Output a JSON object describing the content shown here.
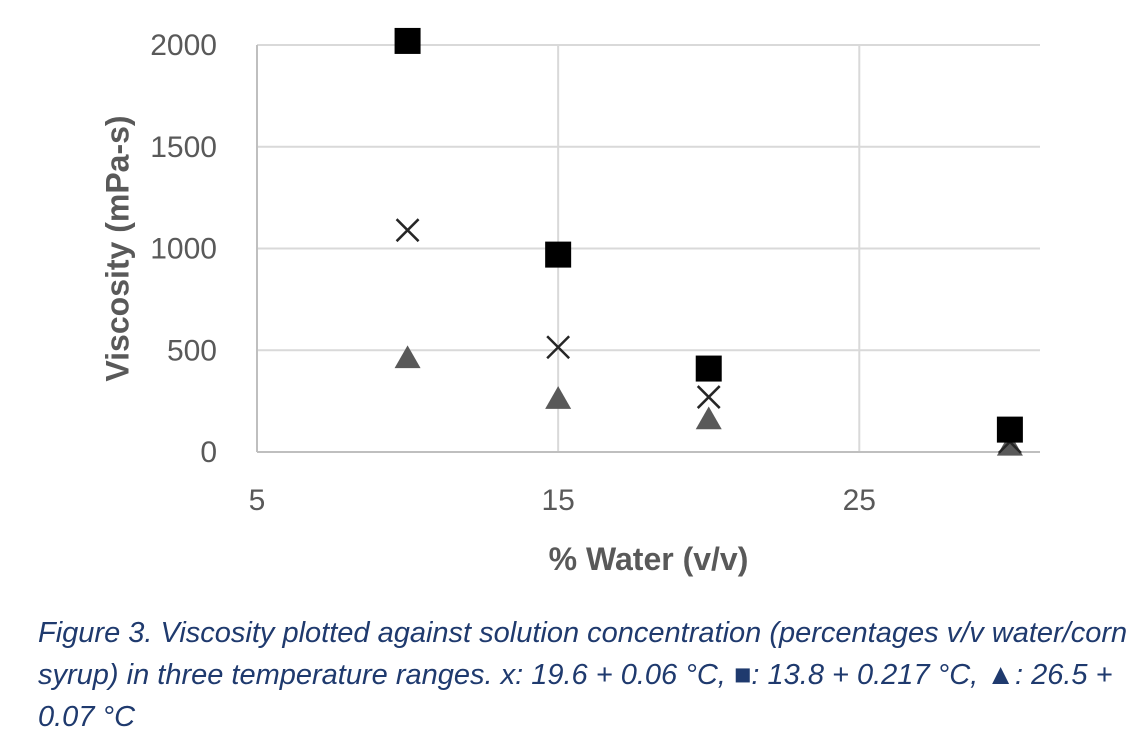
{
  "chart_data": {
    "type": "scatter",
    "xlabel": "% Water (v/v)",
    "ylabel": "Viscosity (mPa-s)",
    "xlim": [
      5,
      31
    ],
    "ylim": [
      0,
      2000
    ],
    "x_ticks": [
      5,
      15,
      25
    ],
    "y_ticks": [
      0,
      500,
      1000,
      1500,
      2000
    ],
    "grid": true,
    "series": [
      {
        "marker": "square",
        "color": "#000000",
        "x": [
          10,
          15,
          20,
          30
        ],
        "y": [
          2020,
          970,
          410,
          110
        ]
      },
      {
        "marker": "x",
        "color": "#262626",
        "x": [
          10,
          15,
          20,
          30
        ],
        "y": [
          1090,
          515,
          270,
          50
        ]
      },
      {
        "marker": "triangle",
        "color": "#595959",
        "x": [
          10,
          15,
          20,
          30
        ],
        "y": [
          460,
          260,
          160,
          30
        ]
      }
    ]
  },
  "caption": "Figure 3. Viscosity plotted against solution concentration (percentages v/v water/corn syrup) in three temperature ranges. x: 19.6 + 0.06 °C, ■: 13.8 + 0.217 °C, ▲: 26.5 + 0.07 °C"
}
